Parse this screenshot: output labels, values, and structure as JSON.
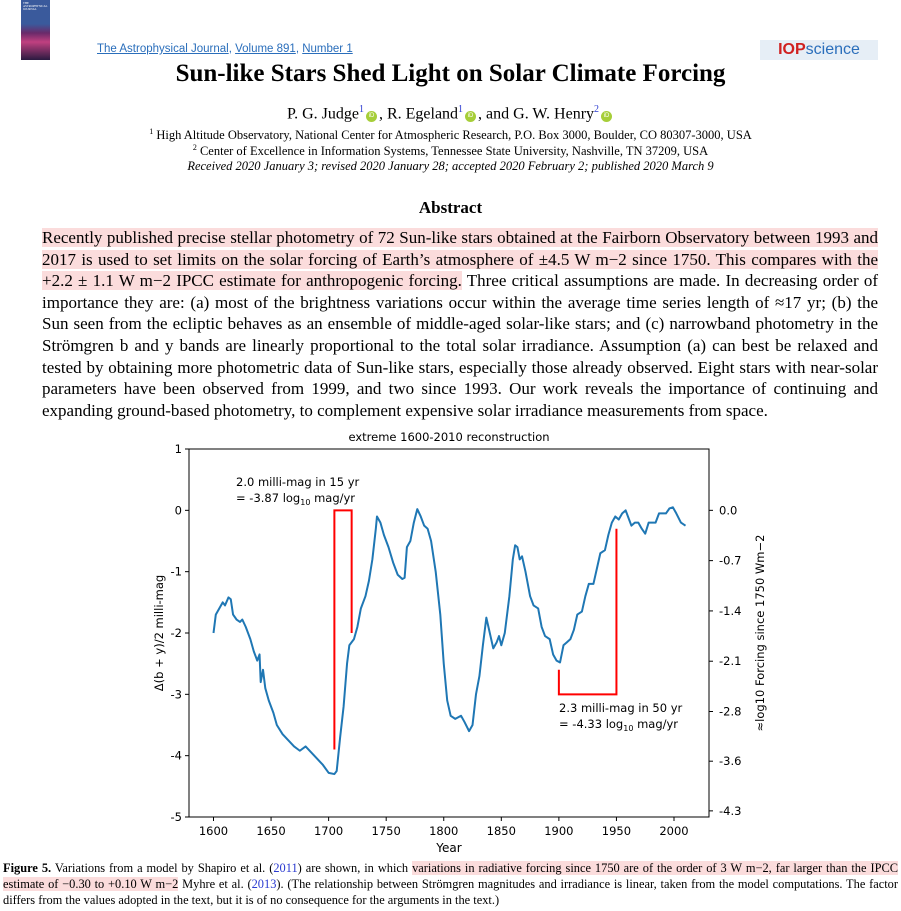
{
  "header": {
    "cover_text": "THE ASTROPHYSICAL JOURNAL",
    "journal_link": "The Astrophysical Journal",
    "sep": ", ",
    "volume_link": "Volume 891",
    "number_link": "Number 1",
    "publisher_logo_bold": "IOP",
    "publisher_logo_rest": "science"
  },
  "article": {
    "title": "Sun-like Stars Shed Light on Solar Climate Forcing",
    "authors": [
      {
        "name": "P. G. Judge",
        "aff": "1",
        "after": ", "
      },
      {
        "name": "R. Egeland",
        "aff": "1",
        "after": ", and "
      },
      {
        "name": "G. W. Henry",
        "aff": "2",
        "after": ""
      }
    ],
    "orcid_label": "iD",
    "affiliations": [
      {
        "num": "1",
        "text": "High Altitude Observatory, National Center for Atmospheric Research, P.O. Box 3000, Boulder, CO 80307-3000, USA"
      },
      {
        "num": "2",
        "text": "Center of Excellence in Information Systems, Tennessee State University, Nashville, TN 37209, USA"
      }
    ],
    "dates": "Received 2020 January 3; revised 2020 January 28; accepted 2020 February 2; published 2020 March 9"
  },
  "abstract": {
    "heading": "Abstract",
    "highlighted": "Recently published precise stellar photometry of 72 Sun-like stars obtained at the Fairborn Observatory between 1993 and 2017 is used to set limits on the solar forcing of Earth’s atmosphere of ±4.5 W m−2 since 1750. This compares with the +2.2 ± 1.1 W m−2 IPCC estimate for anthropogenic forcing.",
    "rest": " Three critical assumptions are made. In decreasing order of importance they are: (a) most of the brightness variations occur within the average time series length of ≈17 yr; (b) the Sun seen from the ecliptic behaves as an ensemble of middle-aged solar-like stars; and (c) narrowband photometry in the Strömgren b and y bands are linearly proportional to the total solar irradiance. Assumption (a) can best be relaxed and tested by obtaining more photometric data of Sun-like stars, especially those already observed. Eight stars with near-solar parameters have been observed from 1999, and two since 1993. Our work reveals the importance of continuing and expanding ground-based photometry, to complement expensive solar irradiance measurements from space."
  },
  "caption": {
    "label": "Figure 5.",
    "p1": " Variations from a model by Shapiro et al. (",
    "ref1": "2011",
    "p2": ") are shown, in which ",
    "highlight": "variations in radiative forcing since 1750 are of the order of 3 W m−2, far larger than the IPCC estimate of −0.30 to +0.10 W m−2",
    "p3": " Myhre et al. (",
    "ref2": "2013",
    "p4": "). (The relationship between Strömgren magnitudes and irradiance is linear, taken from the model computations. The factor differs from the values adopted in the text, but it is of no consequence for the arguments in the text.)"
  },
  "chart_data": {
    "type": "line",
    "title": "extreme 1600-2010 reconstruction",
    "xlabel": "Year",
    "ylabel": "Δ(b + y)/2 milli-mag",
    "y2label": "≈log10 Forcing since 1750 Wm−2",
    "xlim": [
      1580,
      2040
    ],
    "ylim": [
      -5,
      1
    ],
    "xticks": [
      1600,
      1650,
      1700,
      1750,
      1800,
      1850,
      1900,
      1950,
      2000
    ],
    "yticks": [
      1,
      0,
      -1,
      -2,
      -3,
      -4,
      -5
    ],
    "y2ticks": [
      {
        "label": "0.0",
        "at": 0
      },
      {
        "label": "-0.7",
        "at": -0.82
      },
      {
        "label": "-1.4",
        "at": -1.64
      },
      {
        "label": "-2.1",
        "at": -2.46
      },
      {
        "label": "-2.8",
        "at": -3.28
      },
      {
        "label": "-3.6",
        "at": -4.09
      },
      {
        "label": "-4.3",
        "at": -4.9
      }
    ],
    "series": [
      {
        "name": "reconstruction",
        "color": "#1f77b4",
        "x": [
          1600,
          1602,
          1605,
          1608,
          1610,
          1613,
          1615,
          1617,
          1620,
          1623,
          1625,
          1628,
          1632,
          1635,
          1638,
          1640,
          1641,
          1643,
          1645,
          1648,
          1652,
          1655,
          1660,
          1665,
          1670,
          1675,
          1680,
          1685,
          1690,
          1695,
          1700,
          1705,
          1707,
          1710,
          1713,
          1716,
          1718,
          1722,
          1725,
          1728,
          1732,
          1735,
          1738,
          1741,
          1742,
          1745,
          1748,
          1752,
          1756,
          1760,
          1764,
          1766,
          1768,
          1771,
          1774,
          1777,
          1780,
          1783,
          1786,
          1789,
          1793,
          1797,
          1800,
          1803,
          1806,
          1810,
          1815,
          1818,
          1822,
          1825,
          1828,
          1831,
          1834,
          1837,
          1840,
          1843,
          1846,
          1848,
          1850,
          1853,
          1857,
          1860,
          1862,
          1864,
          1866,
          1868,
          1871,
          1875,
          1878,
          1882,
          1885,
          1888,
          1892,
          1895,
          1898,
          1901,
          1904,
          1907,
          1910,
          1913,
          1916,
          1920,
          1923,
          1926,
          1930,
          1933,
          1936,
          1940,
          1943,
          1946,
          1949,
          1952,
          1955,
          1958,
          1960,
          1963,
          1966,
          1969,
          1972,
          1975,
          1978,
          1981,
          1984,
          1987,
          1990,
          1993,
          1996,
          1999,
          2002,
          2006,
          2010
        ],
        "y": [
          -2.0,
          -1.7,
          -1.6,
          -1.5,
          -1.55,
          -1.42,
          -1.45,
          -1.7,
          -1.78,
          -1.82,
          -1.78,
          -1.9,
          -2.1,
          -2.3,
          -2.45,
          -2.35,
          -2.8,
          -2.6,
          -2.9,
          -3.1,
          -3.3,
          -3.5,
          -3.65,
          -3.75,
          -3.85,
          -3.92,
          -3.85,
          -3.95,
          -4.05,
          -4.15,
          -4.28,
          -4.3,
          -4.25,
          -3.7,
          -3.2,
          -2.5,
          -2.2,
          -2.1,
          -1.9,
          -1.6,
          -1.4,
          -1.15,
          -0.8,
          -0.3,
          -0.1,
          -0.2,
          -0.4,
          -0.6,
          -0.85,
          -1.05,
          -1.12,
          -1.1,
          -0.6,
          -0.5,
          -0.2,
          0.02,
          -0.1,
          -0.25,
          -0.3,
          -0.5,
          -1.0,
          -1.7,
          -2.5,
          -3.1,
          -3.35,
          -3.4,
          -3.35,
          -3.45,
          -3.6,
          -3.5,
          -3.0,
          -2.7,
          -2.2,
          -1.75,
          -2.0,
          -2.25,
          -2.15,
          -2.05,
          -2.2,
          -2.0,
          -1.4,
          -0.8,
          -0.57,
          -0.6,
          -0.8,
          -0.75,
          -1.0,
          -1.4,
          -1.55,
          -1.6,
          -1.9,
          -2.05,
          -2.1,
          -2.35,
          -2.45,
          -2.48,
          -2.2,
          -2.15,
          -2.1,
          -1.95,
          -1.7,
          -1.65,
          -1.4,
          -1.2,
          -1.2,
          -0.95,
          -0.7,
          -0.65,
          -0.4,
          -0.2,
          -0.1,
          -0.15,
          -0.05,
          0.0,
          -0.1,
          -0.25,
          -0.2,
          -0.2,
          -0.3,
          -0.38,
          -0.2,
          -0.2,
          -0.2,
          -0.05,
          -0.05,
          -0.05,
          0.03,
          0.05,
          -0.05,
          -0.2,
          -0.25
        ]
      }
    ],
    "annotations": [
      {
        "name": "bracket-15yr",
        "color": "#ff0000",
        "points": [
          [
            1705,
            -3.9
          ],
          [
            1705,
            0
          ],
          [
            1720,
            0
          ],
          [
            1720,
            -2.0
          ]
        ],
        "line1": "2.0 milli-mag in 15 yr",
        "line2_pre": "= -3.87 log",
        "line2_sub": "10",
        "line2_post": " mag/yr"
      },
      {
        "name": "bracket-50yr",
        "color": "#ff0000",
        "points": [
          [
            1900,
            -2.6
          ],
          [
            1900,
            -3.0
          ],
          [
            1950,
            -3.0
          ],
          [
            1950,
            -0.3
          ]
        ],
        "line1": "2.3 milli-mag in 50 yr",
        "line2_pre": "= -4.33 log",
        "line2_sub": "10",
        "line2_post": " mag/yr"
      }
    ]
  }
}
